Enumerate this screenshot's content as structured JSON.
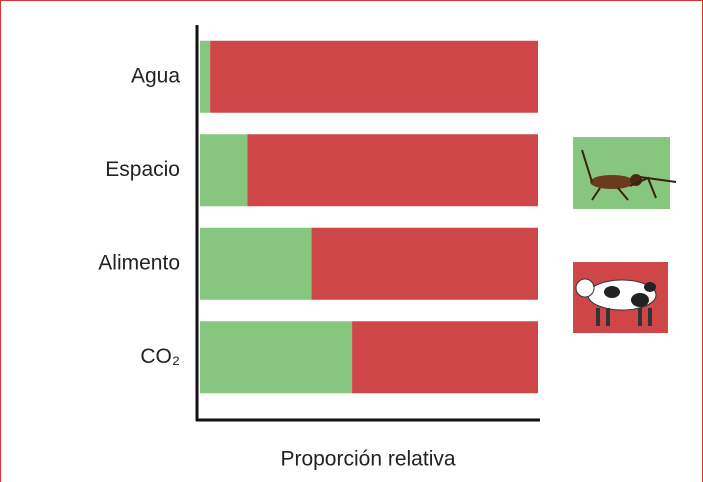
{
  "chart_data": {
    "type": "stacked_barh",
    "categories": [
      "Agua",
      "Espacio",
      "Alimento",
      "CO₂"
    ],
    "series": [
      {
        "color": "#86c67f",
        "values": [
          3,
          14,
          33,
          45
        ]
      },
      {
        "color": "#cf4649",
        "values": [
          97,
          86,
          67,
          55
        ]
      }
    ],
    "xlim": [
      0,
      100
    ],
    "x_label": "Proporción relativa"
  }
}
